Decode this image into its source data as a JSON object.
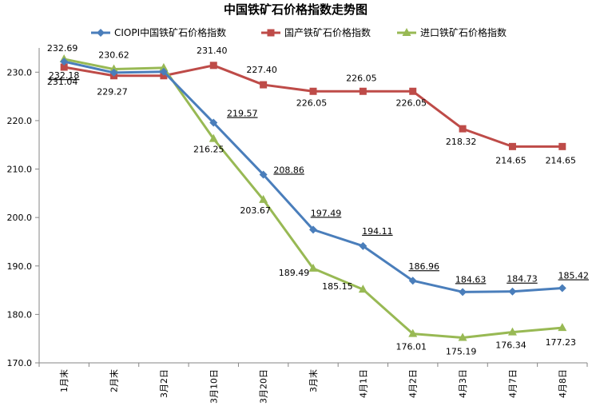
{
  "chart_data": {
    "type": "line",
    "title": "中国铁矿石价格指数走势图",
    "xlabel": "",
    "ylabel": "",
    "ylim": [
      170,
      235
    ],
    "y_ticks": [
      "170.0",
      "180.0",
      "190.0",
      "200.0",
      "210.0",
      "220.0",
      "230.0"
    ],
    "y_tick_values": [
      170,
      180,
      190,
      200,
      210,
      220,
      230
    ],
    "grid": false,
    "legend_position": "top",
    "categories": [
      "1月末",
      "2月末",
      "3月2日",
      "3月10日",
      "3月20日",
      "3月末",
      "4月1日",
      "4月2日",
      "4月3日",
      "4月7日",
      "4月8日"
    ],
    "series": [
      {
        "name": "CIOPI中国铁矿石价格指数",
        "color": "#4a7ebb",
        "marker": "diamond",
        "values": [
          232.18,
          229.9,
          230.1,
          219.57,
          208.86,
          197.49,
          194.11,
          186.96,
          184.63,
          184.73,
          185.42
        ],
        "labels": [
          "232.18",
          "",
          "",
          "219.57",
          "208.86",
          "197.49",
          "194.11",
          "186.96",
          "184.63",
          "184.73",
          "185.42"
        ]
      },
      {
        "name": "国产铁矿石价格指数",
        "color": "#be4b48",
        "marker": "square",
        "values": [
          231.04,
          229.27,
          229.27,
          231.4,
          227.4,
          226.05,
          226.05,
          226.05,
          218.32,
          214.65,
          214.65
        ],
        "labels": [
          "231.04",
          "229.27",
          "",
          "231.40",
          "227.40",
          "226.05",
          "226.05",
          "226.05",
          "218.32",
          "214.65",
          "214.65"
        ]
      },
      {
        "name": "进口铁矿石价格指数",
        "color": "#98b954",
        "marker": "triangle",
        "values": [
          232.69,
          230.62,
          230.9,
          216.25,
          203.67,
          189.49,
          185.15,
          176.01,
          175.19,
          176.34,
          177.23
        ],
        "labels": [
          "232.69",
          "230.62",
          "",
          "216.25",
          "203.67",
          "189.49",
          "185.15",
          "176.01",
          "175.19",
          "176.34",
          "177.23"
        ]
      }
    ]
  }
}
